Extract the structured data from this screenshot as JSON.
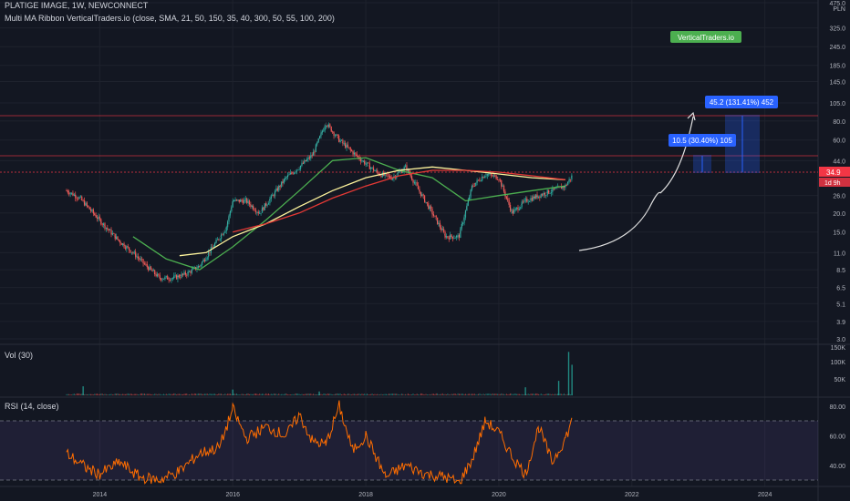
{
  "header": {
    "symbol_line": "PLATIGE IMAGE, 1W, NEWCONNECT",
    "indicator_line": "Multi MA Ribbon VerticalTraders.io (close, SMA, 21, 50, 150, 35, 40, 300, 50, 55, 100, 200)"
  },
  "currency": "PLN",
  "price_axis_labels": [
    "475.0",
    "325.0",
    "245.0",
    "185.0",
    "145.0",
    "105.0",
    "80.0",
    "60.0",
    "44.0",
    "34.9",
    "26.0",
    "20.0",
    "15.0",
    "11.0",
    "8.5",
    "6.5",
    "5.1",
    "3.9",
    "3.0"
  ],
  "last_price": {
    "value": "34.9",
    "countdown": "1d 9h",
    "color": "#f23645"
  },
  "watermark": {
    "label": "VerticalTraders.io",
    "color": "#4caf50"
  },
  "measurements": [
    {
      "label": "10.5 (30.40%) 105",
      "color": "#2962ff"
    },
    {
      "label": "45.2 (131.41%) 452",
      "color": "#2962ff"
    }
  ],
  "vol_pane": {
    "label": "Vol (30)",
    "axis_labels": [
      "150K",
      "100K",
      "50K"
    ]
  },
  "rsi_pane": {
    "label": "RSI (14, close)",
    "axis_labels": [
      "80.00",
      "60.00",
      "40.00"
    ],
    "upper": 70,
    "lower": 30
  },
  "time_axis_labels": [
    "2014",
    "2016",
    "2018",
    "2020",
    "2022",
    "2024"
  ],
  "chart_data": {
    "type": "line",
    "series": [
      {
        "name": "",
        "x": [
          2013.5,
          2013.7,
          2013.9,
          2014.1,
          2014.3,
          2014.5,
          2014.7,
          2014.9,
          2015.1,
          2015.3,
          2015.5,
          2015.7,
          2015.9,
          2016.0,
          2016.2,
          2016.4,
          2016.6,
          2016.8,
          2017.0,
          2017.2,
          2017.4,
          2017.6,
          2017.8,
          2018.0,
          2018.2,
          2018.4,
          2018.6,
          2018.8,
          2019.0,
          2019.2,
          2019.4,
          2019.6,
          2019.8,
          2020.0,
          2020.2,
          2020.4,
          2020.6,
          2020.8,
          2021.0,
          2021.1
        ],
        "values": [
          28,
          25,
          20,
          16,
          13,
          11,
          9,
          7.5,
          7.5,
          8,
          9,
          12,
          16,
          24,
          24,
          20,
          26,
          34,
          40,
          48,
          78,
          60,
          50,
          42,
          36,
          34,
          40,
          28,
          20,
          14,
          14,
          30,
          36,
          34,
          20,
          24,
          26,
          28,
          30,
          34.9
        ]
      },
      {
        "name": "",
        "x": [
          2014.5,
          2015.0,
          2015.5,
          2016.0,
          2016.5,
          2017.0,
          2017.5,
          2018.0,
          2018.5,
          2019.0,
          2019.5,
          2020.0,
          2020.5,
          2021.0
        ],
        "values": [
          14,
          10,
          8.5,
          12,
          18,
          28,
          44,
          46,
          38,
          34,
          24,
          26,
          28,
          30
        ]
      },
      {
        "name": "",
        "x": [
          2015.2,
          2015.6,
          2016.0,
          2016.5,
          2017.0,
          2017.5,
          2018.0,
          2018.5,
          2019.0,
          2019.5,
          2020.0,
          2020.5,
          2021.0
        ],
        "values": [
          10.5,
          11,
          14,
          17,
          22,
          28,
          34,
          38,
          40,
          38,
          36,
          34,
          33
        ]
      },
      {
        "name": "",
        "x": [
          2016.0,
          2016.5,
          2017.0,
          2017.5,
          2018.0,
          2018.5,
          2019.0,
          2019.5,
          2020.0,
          2020.5,
          2021.0
        ],
        "values": [
          15,
          17,
          20,
          25,
          30,
          35,
          38,
          38,
          37,
          35,
          33
        ]
      }
    ],
    "ylim": [
      3.0,
      475.0
    ],
    "y_scale": "log",
    "xlim": [
      2012.5,
      2024.8
    ],
    "rsi": {
      "x": [
        2013.5,
        2013.8,
        2014.0,
        2014.3,
        2014.6,
        2014.9,
        2015.2,
        2015.5,
        2015.8,
        2016.0,
        2016.2,
        2016.5,
        2016.8,
        2017.0,
        2017.2,
        2017.4,
        2017.6,
        2017.8,
        2018.0,
        2018.3,
        2018.6,
        2018.9,
        2019.2,
        2019.4,
        2019.6,
        2019.8,
        2020.0,
        2020.2,
        2020.4,
        2020.6,
        2020.8,
        2021.0,
        2021.1
      ],
      "values": [
        48,
        38,
        34,
        42,
        32,
        30,
        36,
        48,
        52,
        78,
        58,
        66,
        60,
        74,
        56,
        54,
        80,
        50,
        60,
        32,
        40,
        34,
        32,
        28,
        44,
        70,
        62,
        46,
        34,
        66,
        42,
        58,
        70
      ]
    },
    "vol_spikes": [
      {
        "x": 2013.75,
        "value": 28000
      },
      {
        "x": 2016.0,
        "value": 18000
      },
      {
        "x": 2017.3,
        "value": 12000
      },
      {
        "x": 2020.4,
        "value": 25000
      },
      {
        "x": 2020.9,
        "value": 45000
      },
      {
        "x": 2021.05,
        "value": 135000
      },
      {
        "x": 2021.1,
        "value": 95000
      }
    ]
  }
}
